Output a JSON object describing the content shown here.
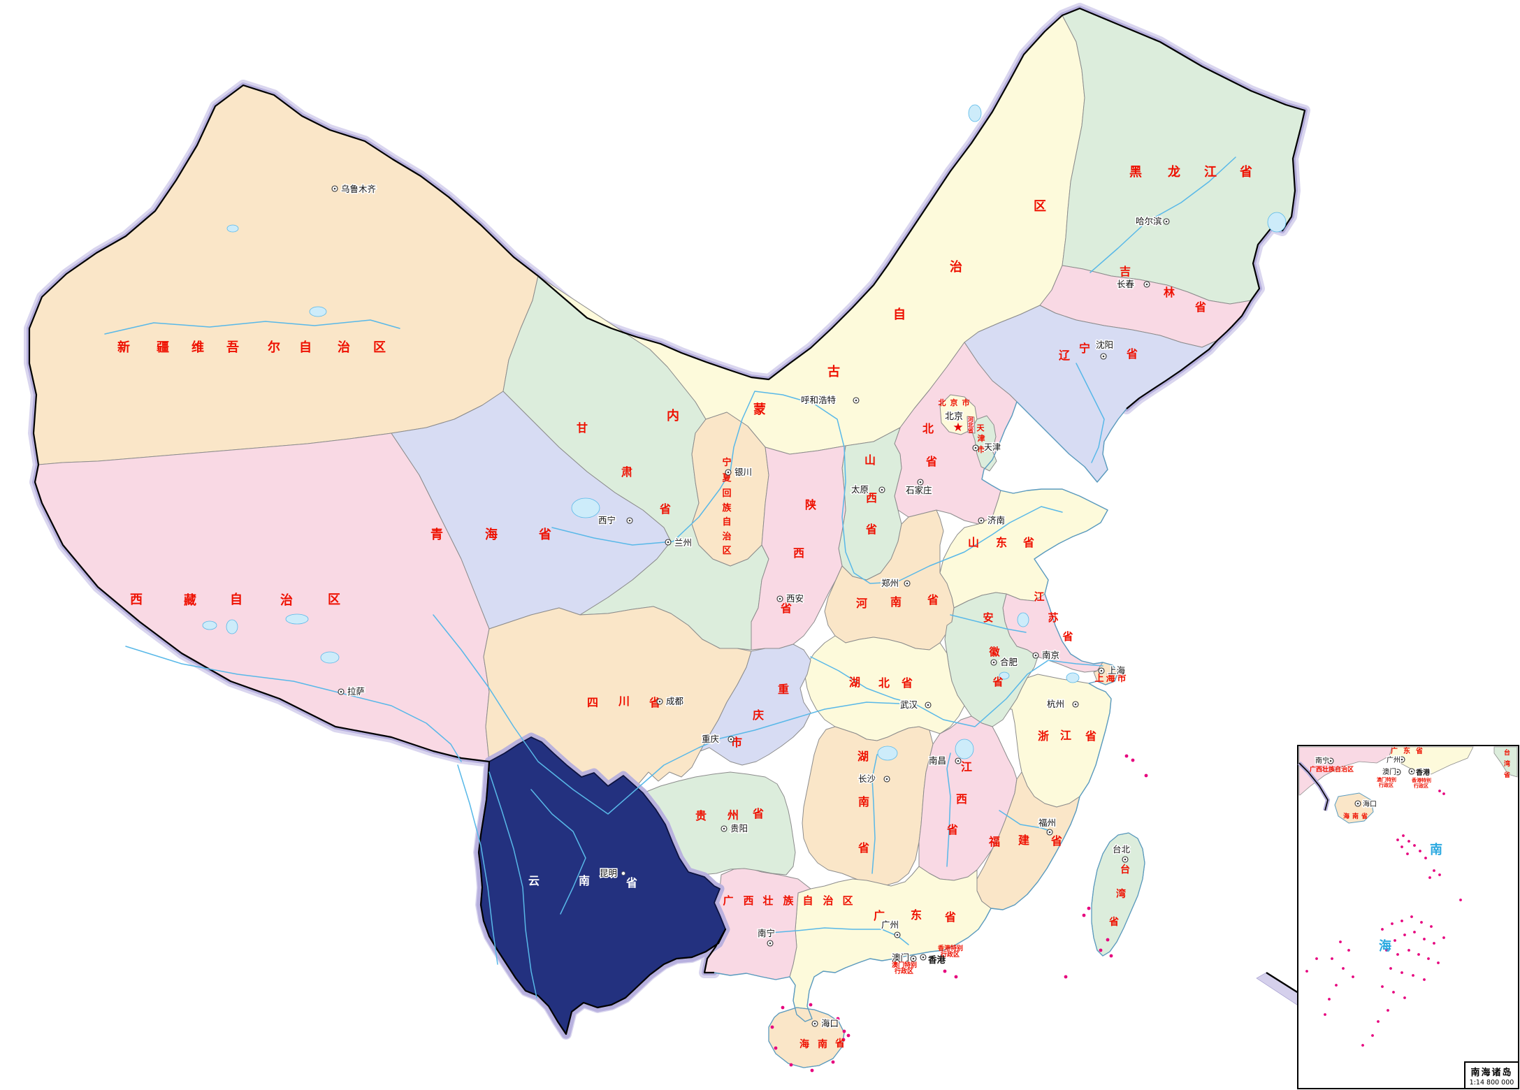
{
  "map": {
    "colors": {
      "cream": "#FDFADB",
      "green": "#DCEDDC",
      "pink": "#F9D9E4",
      "lavender": "#D7DCF3",
      "tan": "#FAE6C8",
      "navy": "#23317F",
      "province_label": "#EE1000",
      "highlight_label": "#FFFFFF",
      "city_label": "#111111",
      "sea_label": "#29A8E0",
      "island": "#E6007D",
      "river": "#58B8E8",
      "lake_fill": "#CDECFA",
      "halo": "#B6AFDD",
      "border_black": "#000000",
      "coast": "#5A9BBF",
      "capital_star": "#E60000"
    },
    "provinces": [
      {
        "id": "heilongjiang",
        "name": "黑龙江省",
        "fill": "green"
      },
      {
        "id": "jilin",
        "name": "吉林省",
        "fill": "pink"
      },
      {
        "id": "liaoning",
        "name": "辽宁省",
        "fill": "lavender"
      },
      {
        "id": "neimenggu",
        "name": "内蒙古自治区",
        "fill": "cream"
      },
      {
        "id": "xinjiang",
        "name": "新疆维吾尔自治区",
        "fill": "tan"
      },
      {
        "id": "xizang",
        "name": "西藏自治区",
        "fill": "pink"
      },
      {
        "id": "qinghai",
        "name": "青海省",
        "fill": "lavender"
      },
      {
        "id": "gansu",
        "name": "甘肃省",
        "fill": "green"
      },
      {
        "id": "ningxia",
        "name": "宁夏回族自治区",
        "fill": "tan"
      },
      {
        "id": "shaanxi",
        "name": "陕西省",
        "fill": "pink"
      },
      {
        "id": "shanxi",
        "name": "山西省",
        "fill": "green"
      },
      {
        "id": "hebei",
        "name": "河北省",
        "fill": "pink"
      },
      {
        "id": "beijing",
        "name": "北京市",
        "fill": "cream"
      },
      {
        "id": "tianjin",
        "name": "天津市",
        "fill": "green"
      },
      {
        "id": "hebei_enclave",
        "name": "河北省",
        "fill": "pink"
      },
      {
        "id": "shandong",
        "name": "山东省",
        "fill": "cream"
      },
      {
        "id": "henan",
        "name": "河南省",
        "fill": "tan"
      },
      {
        "id": "jiangsu",
        "name": "江苏省",
        "fill": "pink"
      },
      {
        "id": "anhui",
        "name": "安徽省",
        "fill": "green"
      },
      {
        "id": "shanghai",
        "name": "上海市",
        "fill": "tan"
      },
      {
        "id": "zhejiang",
        "name": "浙江省",
        "fill": "cream"
      },
      {
        "id": "hubei",
        "name": "湖北省",
        "fill": "cream"
      },
      {
        "id": "hunan",
        "name": "湖南省",
        "fill": "tan"
      },
      {
        "id": "jiangxi",
        "name": "江西省",
        "fill": "pink"
      },
      {
        "id": "fujian",
        "name": "福建省",
        "fill": "tan"
      },
      {
        "id": "guangdong",
        "name": "广东省",
        "fill": "cream"
      },
      {
        "id": "guangxi",
        "name": "广西壮族自治区",
        "fill": "pink"
      },
      {
        "id": "guizhou",
        "name": "贵州省",
        "fill": "green"
      },
      {
        "id": "sichuan",
        "name": "四川省",
        "fill": "tan"
      },
      {
        "id": "chongqing",
        "name": "重庆市",
        "fill": "lavender"
      },
      {
        "id": "yunnan",
        "name": "云南省",
        "fill": "navy",
        "highlighted": true
      },
      {
        "id": "hainan",
        "name": "海南省",
        "fill": "tan"
      },
      {
        "id": "taiwan",
        "name": "台湾省",
        "fill": "green"
      }
    ],
    "cities": [
      {
        "id": "beijing_c",
        "name": "北京",
        "capital": true
      },
      {
        "id": "tianjin_c",
        "name": "天津"
      },
      {
        "id": "haerbin",
        "name": "哈尔滨"
      },
      {
        "id": "changchun",
        "name": "长春"
      },
      {
        "id": "shenyang",
        "name": "沈阳"
      },
      {
        "id": "huhehaote",
        "name": "呼和浩特"
      },
      {
        "id": "wulumuqi",
        "name": "乌鲁木齐"
      },
      {
        "id": "yinchuan",
        "name": "银川"
      },
      {
        "id": "xining",
        "name": "西宁"
      },
      {
        "id": "lanzhou",
        "name": "兰州"
      },
      {
        "id": "lasa",
        "name": "拉萨"
      },
      {
        "id": "taiyuan",
        "name": "太原"
      },
      {
        "id": "shijiazhuang",
        "name": "石家庄"
      },
      {
        "id": "jinan",
        "name": "济南"
      },
      {
        "id": "zhengzhou",
        "name": "郑州"
      },
      {
        "id": "xian",
        "name": "西安"
      },
      {
        "id": "nanjing",
        "name": "南京"
      },
      {
        "id": "hefei",
        "name": "合肥"
      },
      {
        "id": "shanghai_c",
        "name": "上海"
      },
      {
        "id": "hangzhou",
        "name": "杭州"
      },
      {
        "id": "wuhan",
        "name": "武汉"
      },
      {
        "id": "chengdu",
        "name": "成都"
      },
      {
        "id": "chongqing_c",
        "name": "重庆"
      },
      {
        "id": "guiyang",
        "name": "贵阳"
      },
      {
        "id": "changsha",
        "name": "长沙"
      },
      {
        "id": "nanchang",
        "name": "南昌"
      },
      {
        "id": "fuzhou",
        "name": "福州"
      },
      {
        "id": "guangzhou",
        "name": "广州"
      },
      {
        "id": "nanning",
        "name": "南宁"
      },
      {
        "id": "kunming",
        "name": "昆明"
      },
      {
        "id": "haikou",
        "name": "海口"
      },
      {
        "id": "taibei",
        "name": "台北"
      },
      {
        "id": "xianggang",
        "name": "香港"
      },
      {
        "id": "aomen",
        "name": "澳门"
      }
    ],
    "special_regions": [
      {
        "id": "hk",
        "name": "香港",
        "admin_line1": "香港特别",
        "admin_line2": "行政区"
      },
      {
        "id": "mo",
        "name": "澳门",
        "admin_line1": "澳门特别",
        "admin_line2": "行政区"
      }
    ],
    "inset": {
      "title": "南海诸岛",
      "scale": "1:14 800 000",
      "sea_name": [
        "南",
        "海"
      ],
      "labels": [
        {
          "id": "in_nanning",
          "name": "南宁"
        },
        {
          "id": "in_guangxi",
          "name": "广西壮族自治区"
        },
        {
          "id": "in_guangdong",
          "name": "广东省"
        },
        {
          "id": "in_guangzhou",
          "name": "广州"
        },
        {
          "id": "in_aomen",
          "name": "澳门"
        },
        {
          "id": "in_aomen_admin1",
          "name": "澳门特别"
        },
        {
          "id": "in_aomen_admin2",
          "name": "行政区"
        },
        {
          "id": "in_xianggang",
          "name": "香港"
        },
        {
          "id": "in_xianggang_admin1",
          "name": "香港特别"
        },
        {
          "id": "in_xianggang_admin2",
          "name": "行政区"
        },
        {
          "id": "in_haikou",
          "name": "海口"
        },
        {
          "id": "in_hainan",
          "name": "海南省"
        },
        {
          "id": "in_taiwan",
          "name": "台湾省"
        }
      ]
    }
  }
}
